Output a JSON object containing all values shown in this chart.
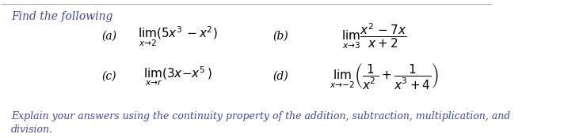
{
  "title": "Find the following",
  "bg_color": "#ffffff",
  "text_color": "#000000",
  "blue_color": "#4444aa",
  "label_a": "(a)",
  "label_b": "(b)",
  "label_c": "(c)",
  "label_d": "(d)",
  "expr_a": "$\\lim_{x\\to 2}(5x^3 - x^2)$",
  "expr_b": "$\\lim_{x\\to 3}\\dfrac{x^2 - 7x}{x + 2}$",
  "expr_c": "$\\lim_{x\\to r}(3x - x^5)$",
  "expr_d": "$\\lim_{x\\to -2}\\left(\\dfrac{1}{x^2} + \\dfrac{1}{x^3+4}\\right)$",
  "explain": "Explain your answers using the continuity property of the addition, subtraction, multiplication, and\ndivision.",
  "title_fontsize": 10,
  "body_fontsize": 10,
  "math_fontsize": 11
}
